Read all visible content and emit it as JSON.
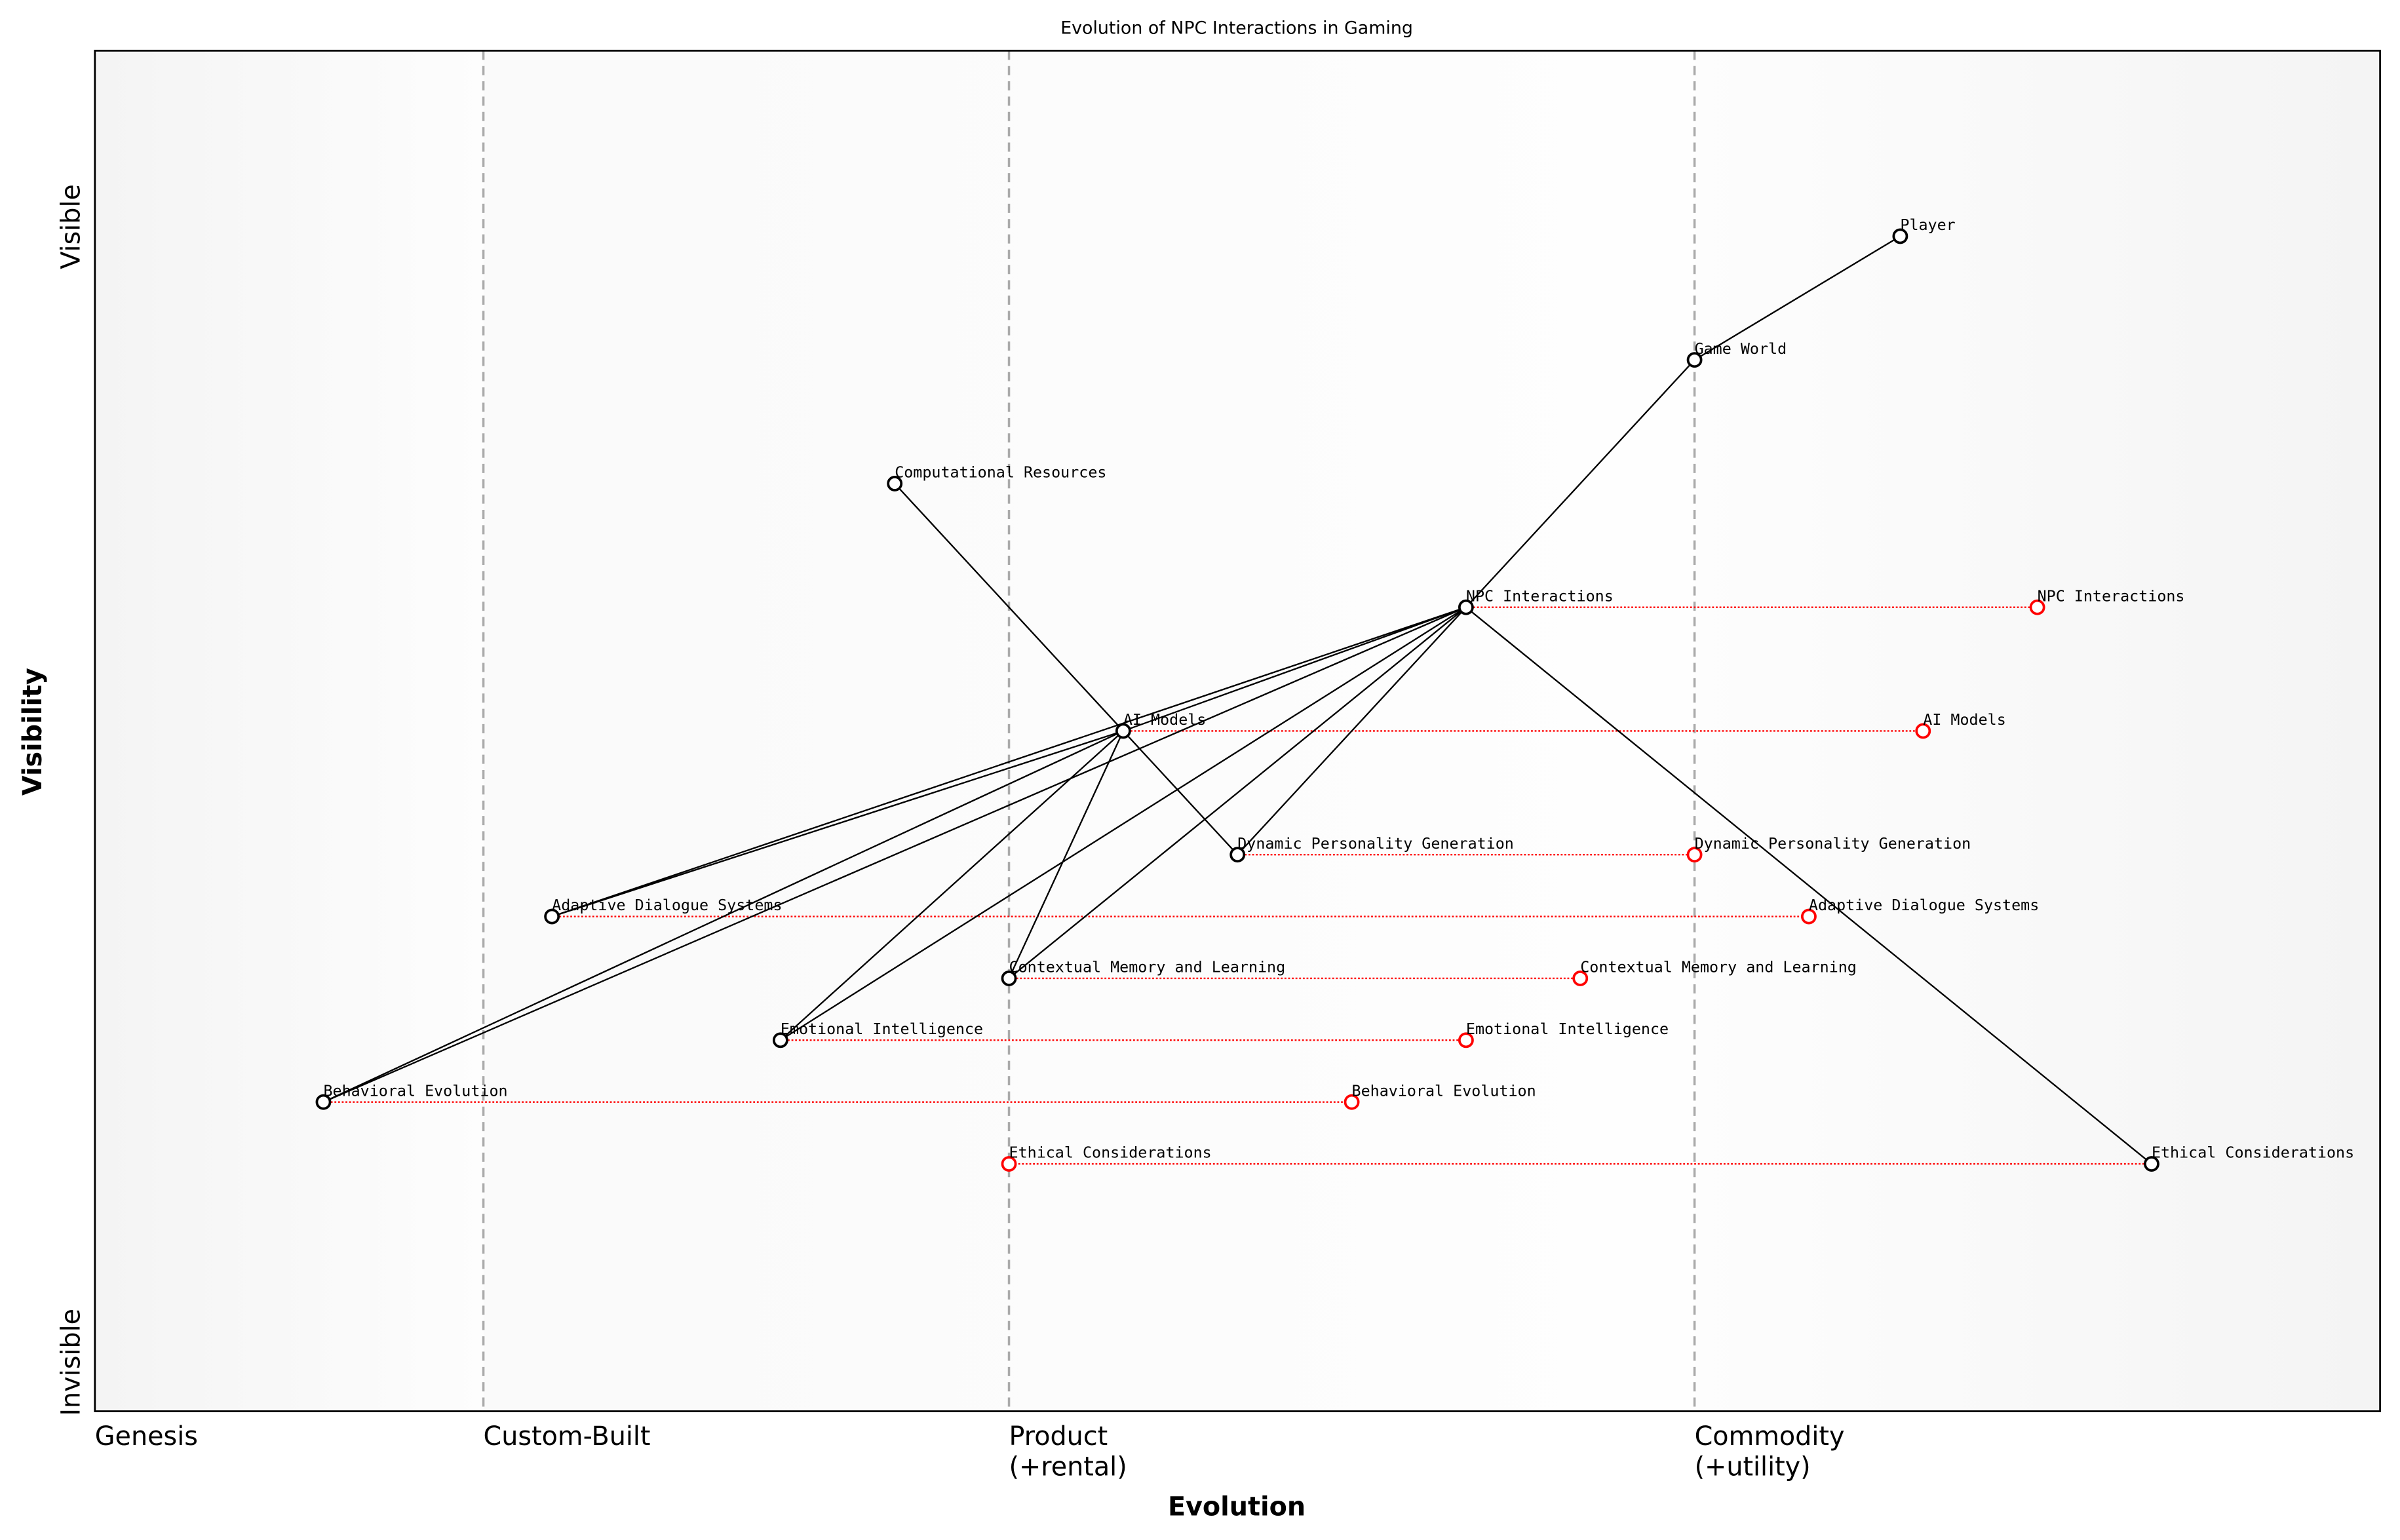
{
  "title": "Evolution of NPC Interactions in Gaming",
  "xlabel": "Evolution",
  "ylabel": "Visibility",
  "y_ticks": {
    "top": "Visible",
    "bottom": "Invisible"
  },
  "stages": [
    {
      "label": "Genesis",
      "evolution": 0.0
    },
    {
      "label": "Custom-Built",
      "evolution": 0.17
    },
    {
      "label": "Product\n(+rental)",
      "evolution": 0.4
    },
    {
      "label": "Commodity\n(+utility)",
      "evolution": 0.7
    }
  ],
  "chart_data": {
    "type": "wardley-map",
    "xlim": [
      0,
      1
    ],
    "ylim": [
      0,
      1.1
    ],
    "components": [
      {
        "name": "Player",
        "evolution": 0.79,
        "visibility": 0.95
      },
      {
        "name": "Game World",
        "evolution": 0.7,
        "visibility": 0.85
      },
      {
        "name": "Computational Resources",
        "evolution": 0.35,
        "visibility": 0.75
      },
      {
        "name": "NPC Interactions",
        "evolution": 0.6,
        "visibility": 0.65
      },
      {
        "name": "AI Models",
        "evolution": 0.45,
        "visibility": 0.55
      },
      {
        "name": "Dynamic Personality Generation",
        "evolution": 0.5,
        "visibility": 0.45
      },
      {
        "name": "Adaptive Dialogue Systems",
        "evolution": 0.2,
        "visibility": 0.4
      },
      {
        "name": "Contextual Memory and Learning",
        "evolution": 0.4,
        "visibility": 0.35
      },
      {
        "name": "Emotional Intelligence",
        "evolution": 0.3,
        "visibility": 0.3
      },
      {
        "name": "Behavioral Evolution",
        "evolution": 0.1,
        "visibility": 0.25
      },
      {
        "name": "Ethical Considerations",
        "evolution": 0.9,
        "visibility": 0.2
      }
    ],
    "evolved": [
      {
        "name": "NPC Interactions",
        "evolution": 0.85,
        "visibility": 0.65
      },
      {
        "name": "AI Models",
        "evolution": 0.8,
        "visibility": 0.55
      },
      {
        "name": "Dynamic Personality Generation",
        "evolution": 0.7,
        "visibility": 0.45
      },
      {
        "name": "Adaptive Dialogue Systems",
        "evolution": 0.75,
        "visibility": 0.4
      },
      {
        "name": "Contextual Memory and Learning",
        "evolution": 0.65,
        "visibility": 0.35
      },
      {
        "name": "Emotional Intelligence",
        "evolution": 0.6,
        "visibility": 0.3
      },
      {
        "name": "Behavioral Evolution",
        "evolution": 0.55,
        "visibility": 0.25
      },
      {
        "name": "Ethical Considerations",
        "evolution": 0.4,
        "visibility": 0.2
      }
    ],
    "links": [
      [
        "Player",
        "Game World"
      ],
      [
        "Game World",
        "NPC Interactions"
      ],
      [
        "NPC Interactions",
        "AI Models"
      ],
      [
        "NPC Interactions",
        "Dynamic Personality Generation"
      ],
      [
        "NPC Interactions",
        "Adaptive Dialogue Systems"
      ],
      [
        "NPC Interactions",
        "Contextual Memory and Learning"
      ],
      [
        "NPC Interactions",
        "Emotional Intelligence"
      ],
      [
        "NPC Interactions",
        "Behavioral Evolution"
      ],
      [
        "NPC Interactions",
        "Ethical Considerations"
      ],
      [
        "AI Models",
        "Computational Resources"
      ],
      [
        "Dynamic Personality Generation",
        "AI Models"
      ],
      [
        "Adaptive Dialogue Systems",
        "AI Models"
      ],
      [
        "Contextual Memory and Learning",
        "AI Models"
      ],
      [
        "Emotional Intelligence",
        "AI Models"
      ],
      [
        "Behavioral Evolution",
        "AI Models"
      ]
    ],
    "colors": {
      "component": "#000000",
      "evolved": "#ff0000",
      "link": "#000000",
      "stage_line": "#aaaaaa"
    }
  }
}
